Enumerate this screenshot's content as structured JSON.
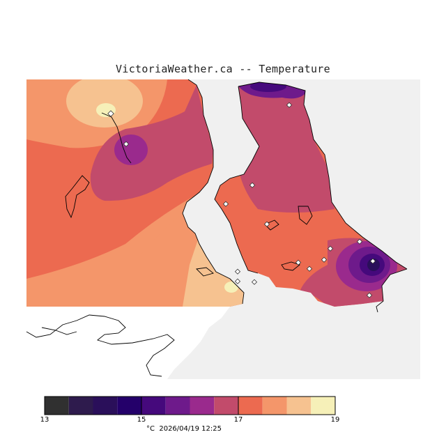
{
  "title": "VictoriaWeather.ca -- Temperature",
  "colorbar": {
    "colors": [
      "#303030",
      "#2e1b4d",
      "#2a0f5a",
      "#24006a",
      "#45097c",
      "#6e1a8b",
      "#9a2a8d",
      "#c24b6b",
      "#ec6a50",
      "#f4966a",
      "#f6c290",
      "#f6f0b8"
    ],
    "ticks": [
      "13",
      "15",
      "17",
      "19"
    ]
  },
  "footer": {
    "units": "°C",
    "timestamp": "2026/04/19 12:25"
  },
  "stations": 16
}
